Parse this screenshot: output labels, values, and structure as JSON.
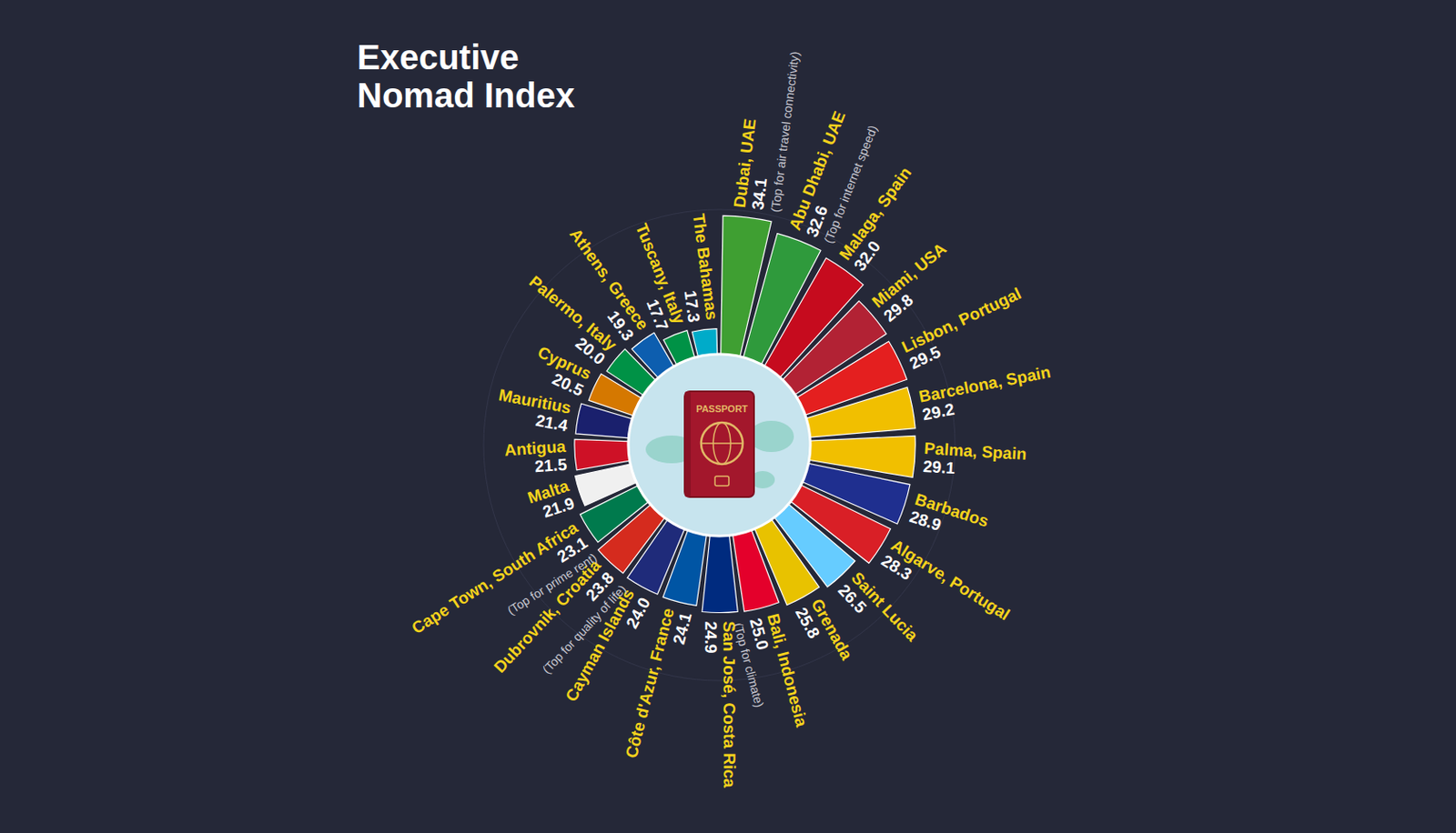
{
  "chart_data": {
    "type": "radial_bar",
    "title": "Executive Nomad Index",
    "categories": [
      "Dubai, UAE",
      "Abu Dhabi, UAE",
      "Malaga, Spain",
      "Miami, USA",
      "Lisbon, Portugal",
      "Barcelona, Spain",
      "Palma, Spain",
      "Barbados",
      "Algarve, Portugal",
      "Saint Lucia",
      "Grenada",
      "Bali, Indonesia",
      "San José, Costa Rica",
      "Côte d'Azur, France",
      "Cayman Islands",
      "Dubrovnik, Croatia",
      "Cape Town, South Africa",
      "Malta",
      "Antigua",
      "Mauritius",
      "Cyprus",
      "Palermo, Italy",
      "Athens, Greece",
      "Tuscany, Italy",
      "The Bahamas"
    ],
    "values": [
      34.1,
      32.6,
      32.0,
      29.8,
      29.5,
      29.2,
      29.1,
      28.9,
      28.3,
      26.5,
      25.8,
      25.0,
      24.9,
      24.1,
      24.0,
      23.8,
      23.1,
      21.9,
      21.5,
      21.4,
      20.5,
      20.0,
      19.3,
      17.7,
      17.3
    ],
    "value_labels": [
      "34.1",
      "32.6",
      "32.0",
      "29.8",
      "29.5",
      "29.2",
      "29.1",
      "28.9",
      "28.3",
      "26.5",
      "25.8",
      "25.0",
      "24.9",
      "24.1",
      "24.0",
      "23.8",
      "23.1",
      "21.9",
      "21.5",
      "21.4",
      "20.5",
      "20.0",
      "19.3",
      "17.7",
      "17.3"
    ],
    "annotations": [
      "(Top for air travel connectivity)",
      "(Top for internet speed)",
      null,
      null,
      null,
      null,
      null,
      null,
      null,
      null,
      null,
      "(Top for climate)",
      null,
      null,
      null,
      "(Top for quality of life)",
      "(Top for prime rent)",
      null,
      null,
      null,
      null,
      null,
      null,
      null,
      null
    ],
    "colors": [
      "#3f9f32",
      "#2f9a3c",
      "#c60b1e",
      "#b22234",
      "#e41f1f",
      "#f1bf00",
      "#f1bf00",
      "#1f2f8f",
      "#d91f26",
      "#66ccff",
      "#e8c200",
      "#e4002b",
      "#002b7f",
      "#0055a4",
      "#1f2b7a",
      "#d52b1e",
      "#007a4d",
      "#f0f0f0",
      "#ce1126",
      "#1a206d",
      "#d57800",
      "#009246",
      "#0d5eaf",
      "#009246",
      "#00abc9"
    ],
    "ylim": [
      0,
      35
    ],
    "tick_labels": false,
    "data_labels": true
  },
  "decoration": {
    "passport_text": "PASSPORT"
  }
}
